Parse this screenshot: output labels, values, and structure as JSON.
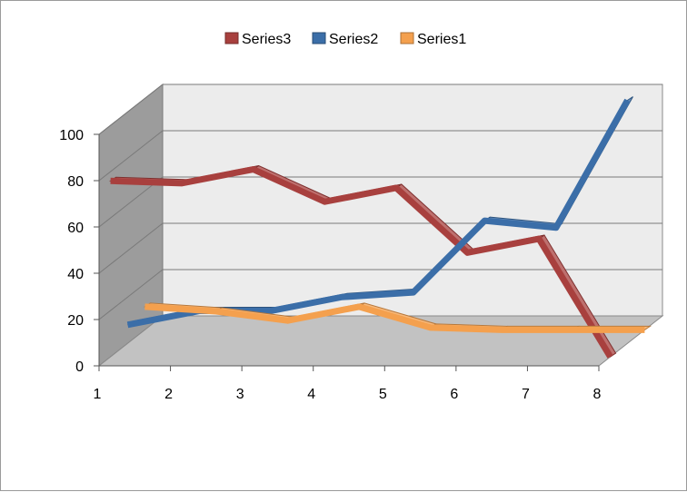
{
  "chart_data": {
    "type": "line",
    "style": "3d",
    "categories": [
      "1",
      "2",
      "3",
      "4",
      "5",
      "6",
      "7",
      "8"
    ],
    "ylim": [
      0,
      100
    ],
    "yticks": [
      "0",
      "20",
      "40",
      "60",
      "80",
      "100"
    ],
    "grid": true,
    "legend_position": "top",
    "legend": [
      "Series3",
      "Series2",
      "Series1"
    ],
    "series": [
      {
        "name": "Series3",
        "color": "#a8403e",
        "values": [
          76,
          75,
          81,
          67,
          73,
          45,
          51,
          0
        ]
      },
      {
        "name": "Series2",
        "color": "#3b6ea8",
        "values": [
          8,
          14,
          14,
          20,
          22,
          53,
          50,
          105
        ]
      },
      {
        "name": "Series1",
        "color": "#f4a04e",
        "values": [
          10,
          8,
          4,
          10,
          1,
          0,
          0,
          0
        ]
      }
    ]
  }
}
